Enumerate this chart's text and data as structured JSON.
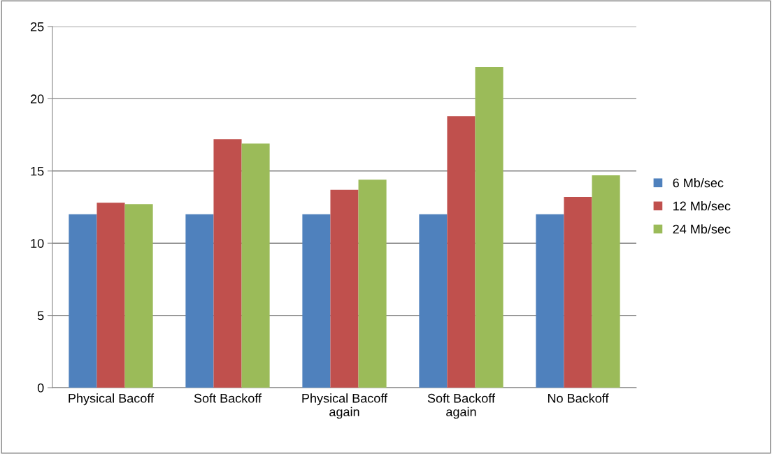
{
  "chart_data": {
    "type": "bar",
    "categories": [
      "Physical Bacoff",
      "Soft Backoff",
      "Physical Bacoff\nagain",
      "Soft Backoff\nagain",
      "No Backoff"
    ],
    "series": [
      {
        "name": "6 Mb/sec",
        "color": "#4f81bd",
        "values": [
          12,
          12,
          12,
          12,
          12
        ]
      },
      {
        "name": "12 Mb/sec",
        "color": "#c0504d",
        "values": [
          12.8,
          17.2,
          13.7,
          18.8,
          13.2
        ]
      },
      {
        "name": "24 Mb/sec",
        "color": "#9bbb59",
        "values": [
          12.7,
          16.9,
          14.4,
          22.2,
          14.7
        ]
      }
    ],
    "ylim": [
      0,
      25
    ],
    "yticks": [
      0,
      5,
      10,
      15,
      20,
      25
    ],
    "grid": "y",
    "legend": "right"
  }
}
